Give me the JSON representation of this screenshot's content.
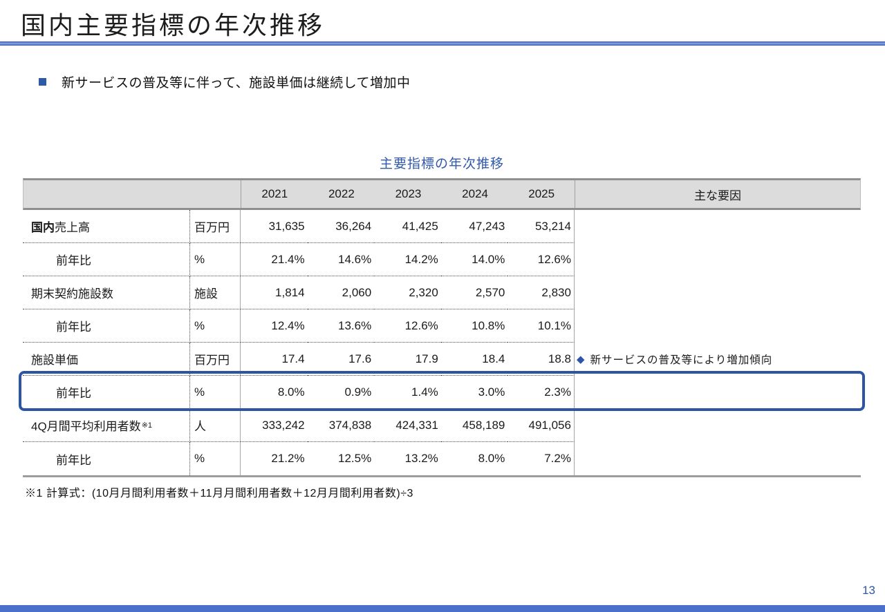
{
  "slide": {
    "title": "国内主要指標の年次推移",
    "bullet_text": "新サービスの普及等に伴って、施設単価は継続して増加中",
    "footnote": "※1 計算式：(10月月間利用者数＋11月月間利用者数＋12月月間利用者数)÷3",
    "page_number": "13"
  },
  "colors": {
    "accent_blue": "#2e55a5",
    "heading_rule_blue": "#2f55a8",
    "table_title_blue": "#3159ab",
    "header_row_gray": "#dcdcdc",
    "bottom_bar_blue": "#4a70cc"
  },
  "table": {
    "title": "主要指標の年次推移",
    "year_columns": [
      "2021",
      "2022",
      "2023",
      "2024",
      "2025"
    ],
    "factors_header": "主な要因",
    "rows": [
      {
        "label_bold": "国内",
        "label": "売上高",
        "unit": "百万円",
        "values": [
          "31,635",
          "36,264",
          "41,425",
          "47,243",
          "53,214"
        ]
      },
      {
        "label": "前年比",
        "unit": "%",
        "values": [
          "21.4%",
          "14.6%",
          "14.2%",
          "14.0%",
          "12.6%"
        ]
      },
      {
        "label": "期末契約施設数",
        "unit": "施設",
        "values": [
          "1,814",
          "2,060",
          "2,320",
          "2,570",
          "2,830"
        ]
      },
      {
        "label": "前年比",
        "unit": "%",
        "values": [
          "12.4%",
          "13.6%",
          "12.6%",
          "10.8%",
          "10.1%"
        ]
      },
      {
        "label": "施設単価",
        "unit": "百万円",
        "values": [
          "17.4",
          "17.6",
          "17.9",
          "18.4",
          "18.8"
        ],
        "factor_bullet": "◆",
        "factor": "新サービスの普及等により増加傾向"
      },
      {
        "label": "前年比",
        "unit": "%",
        "values": [
          "8.0%",
          "0.9%",
          "1.4%",
          "3.0%",
          "2.3%"
        ]
      },
      {
        "label": "4Q月間平均利用者数",
        "label_sup": "※1",
        "unit": "人",
        "values": [
          "333,242",
          "374,838",
          "424,331",
          "458,189",
          "491,056"
        ]
      },
      {
        "label": "前年比",
        "unit": "%",
        "values": [
          "21.2%",
          "12.5%",
          "13.2%",
          "8.0%",
          "7.2%"
        ]
      }
    ]
  }
}
